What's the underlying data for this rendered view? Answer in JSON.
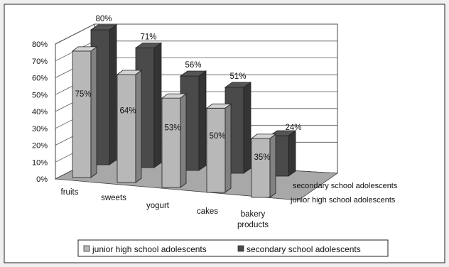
{
  "chart_data": {
    "type": "bar",
    "title": "",
    "xlabel": "",
    "ylabel": "",
    "ylim": [
      0,
      80
    ],
    "yticks": [
      "0%",
      "10%",
      "20%",
      "30%",
      "40%",
      "50%",
      "60%",
      "70%",
      "80%"
    ],
    "categories": [
      "fruits",
      "sweets",
      "yogurt",
      "cakes",
      "bakery products"
    ],
    "series": [
      {
        "name": "junior high school adolescents",
        "values": [
          75,
          64,
          53,
          50,
          35
        ],
        "labels": [
          "75%",
          "64%",
          "53%",
          "50%",
          "35%"
        ],
        "color": "#b8b8b8"
      },
      {
        "name": "secondary school adolescents",
        "values": [
          80,
          71,
          56,
          51,
          24
        ],
        "labels": [
          "80%",
          "71%",
          "56%",
          "51%",
          "24%"
        ],
        "color": "#4a4a4a"
      }
    ],
    "depth_axis_labels": [
      "junior high school adolescents",
      "secondary school adolescents"
    ],
    "legend_position": "bottom",
    "grid": true,
    "style": "3d-clustered"
  }
}
